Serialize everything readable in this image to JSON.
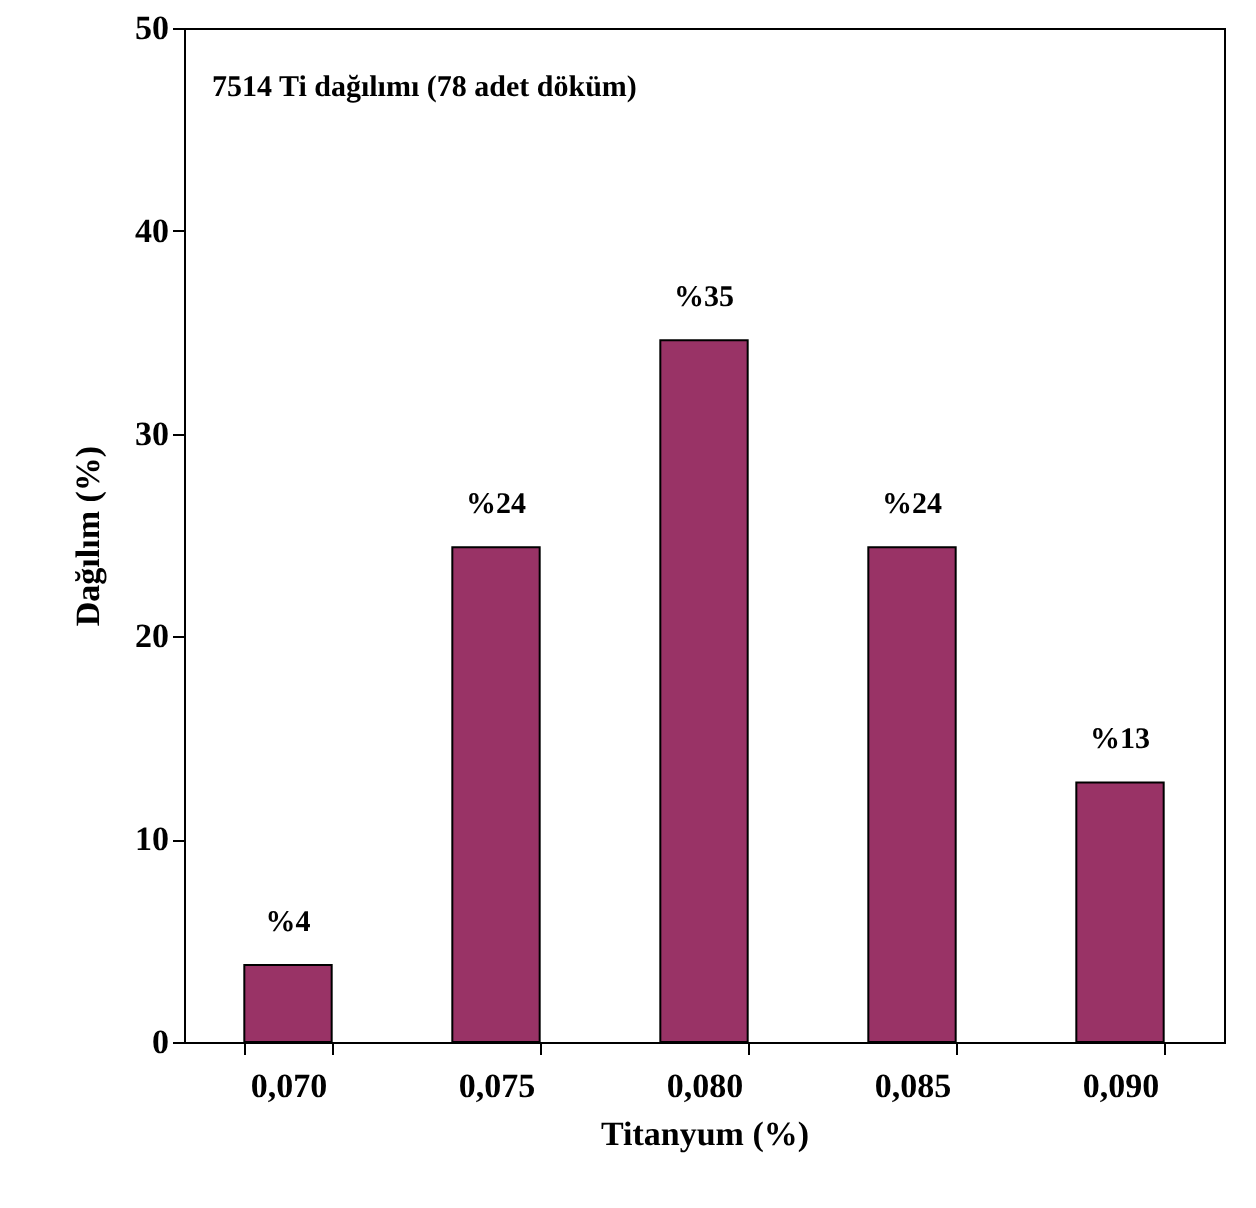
{
  "chart_data": {
    "type": "bar",
    "annotations": [
      "7514 Ti dağılımı (78 adet döküm)"
    ],
    "xlabel": "Titanyum (%)",
    "ylabel": "Dağılım  (%)",
    "categories": [
      "0,070",
      "0,075",
      "0,080",
      "0,085",
      "0,090"
    ],
    "values": [
      3.8,
      24.4,
      34.6,
      24.4,
      12.8
    ],
    "value_labels": [
      "%4",
      "%24",
      "%35",
      "%24",
      "%13"
    ],
    "color": "#993366",
    "ylim": [
      0,
      50
    ],
    "yticks": [
      0,
      10,
      20,
      30,
      40,
      50
    ],
    "grid": false
  }
}
